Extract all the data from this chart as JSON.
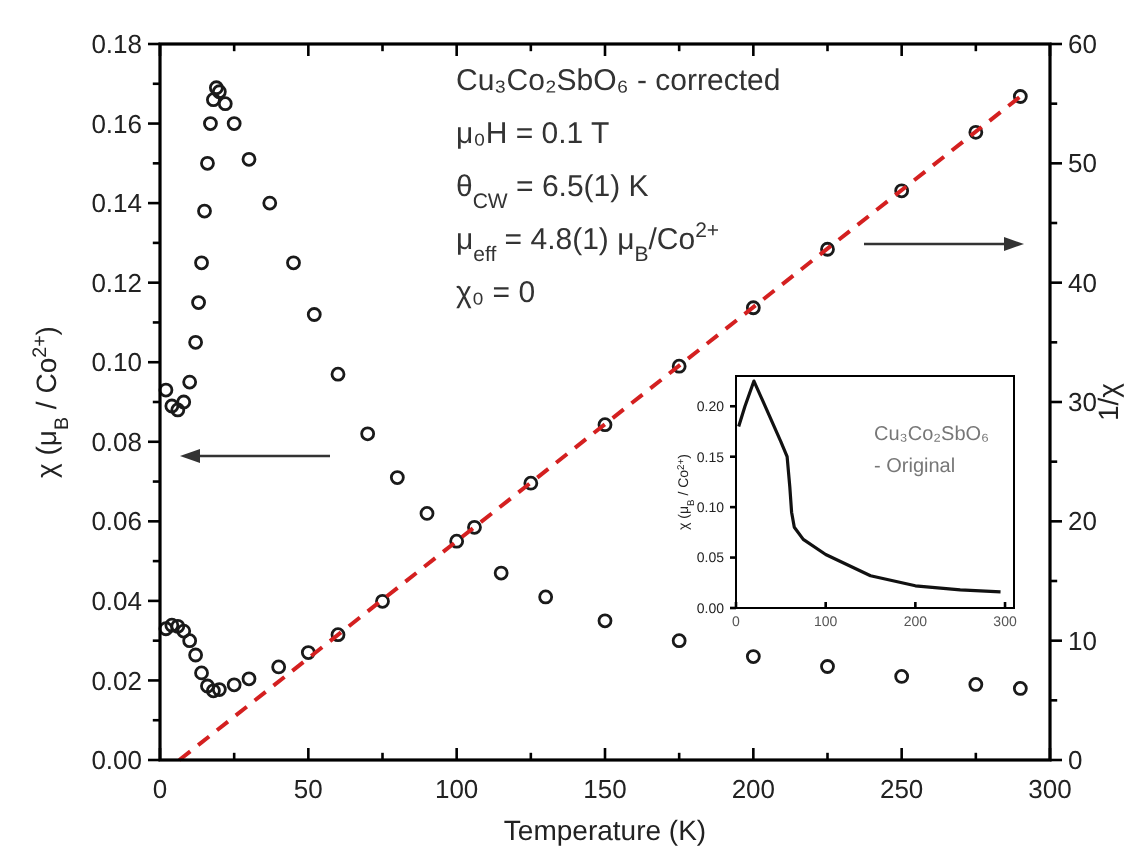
{
  "chart_data": [
    {
      "type": "scatter",
      "xlabel": "Temperature (K)",
      "ylabel": "χ (μ$_{B}$ / Co$^{2+}$)",
      "y2label": "1/χ",
      "marker": "circle",
      "xlim": [
        0,
        300
      ],
      "xticks": [
        0,
        {
          "value": 25,
          "label": null
        },
        50,
        {
          "value": 75,
          "label": null
        },
        100,
        {
          "value": 125,
          "label": null
        },
        150,
        {
          "value": 175,
          "label": null
        },
        200,
        {
          "value": 225,
          "label": null
        },
        250,
        {
          "value": 275,
          "label": null
        },
        300
      ],
      "ylim": [
        0,
        0.18
      ],
      "yticks": [
        {
          "value": 0,
          "label": "0.00"
        },
        {
          "value": 0.01,
          "label": null
        },
        {
          "value": 0.02,
          "label": "0.02"
        },
        {
          "value": 0.03,
          "label": null
        },
        {
          "value": 0.04,
          "label": "0.04"
        },
        {
          "value": 0.05,
          "label": null
        },
        {
          "value": 0.06,
          "label": "0.06"
        },
        {
          "value": 0.07,
          "label": null
        },
        {
          "value": 0.08,
          "label": "0.08"
        },
        {
          "value": 0.09,
          "label": null
        },
        {
          "value": 0.1,
          "label": "0.10"
        },
        {
          "value": 0.11,
          "label": null
        },
        {
          "value": 0.12,
          "label": "0.12"
        },
        {
          "value": 0.13,
          "label": null
        },
        {
          "value": 0.14,
          "label": "0.14"
        },
        {
          "value": 0.15,
          "label": null
        },
        {
          "value": 0.16,
          "label": "0.16"
        },
        {
          "value": 0.17,
          "label": null
        },
        {
          "value": 0.18,
          "label": "0.18"
        }
      ],
      "y2lim": [
        0,
        60
      ],
      "y2ticks": [
        0,
        {
          "value": 5,
          "label": null
        },
        10,
        {
          "value": 15,
          "label": null
        },
        20,
        {
          "value": 25,
          "label": null
        },
        30,
        {
          "value": 35,
          "label": null
        },
        40,
        {
          "value": 45,
          "label": null
        },
        50,
        {
          "value": 55,
          "label": null
        },
        60
      ],
      "annotations": [
        "Cu₃Co₂SbO₆ - corrected",
        "μ₀H = 0.1 T",
        "θ$_{CW}$ = 6.5(1) K",
        "μ$_{eff}$ = 4.8(1) μ$_{B}$/Co$^{2+}$",
        "χ₀   = 0"
      ],
      "series": [
        {
          "color": "#1a1a1a",
          "x": [
            2,
            4,
            6,
            8,
            10,
            12,
            13,
            14,
            15,
            16,
            17,
            18,
            19,
            20,
            22,
            25,
            30,
            37,
            45,
            52,
            60,
            70,
            80,
            90,
            100,
            115,
            130,
            150,
            175,
            200,
            225,
            250,
            275,
            290
          ],
          "values": [
            0.093,
            0.089,
            0.088,
            0.09,
            0.095,
            0.105,
            0.115,
            0.125,
            0.138,
            0.15,
            0.16,
            0.166,
            0.169,
            0.168,
            0.165,
            0.16,
            0.151,
            0.14,
            0.125,
            0.112,
            0.097,
            0.082,
            0.071,
            0.062,
            0.055,
            0.047,
            0.041,
            0.035,
            0.03,
            0.026,
            0.0235,
            0.021,
            0.019,
            0.018
          ]
        },
        {
          "color": "#1a1a1a",
          "axis": "y2",
          "x": [
            2,
            4,
            6,
            8,
            10,
            12,
            14,
            16,
            18,
            20,
            25,
            30,
            40,
            50,
            60,
            75,
            106,
            125,
            150,
            175,
            200,
            225,
            250,
            275,
            290
          ],
          "values": [
            11.0,
            11.3,
            11.2,
            10.8,
            10.0,
            8.8,
            7.3,
            6.2,
            5.8,
            5.9,
            6.3,
            6.8,
            7.8,
            9.0,
            10.5,
            13.3,
            19.5,
            23.2,
            28.1,
            33.0,
            37.9,
            42.8,
            47.7,
            52.6,
            55.6
          ]
        },
        {
          "type": "line",
          "color": "#d42020",
          "axis": "y2",
          "marker": "none",
          "line_style": "dashed",
          "x": [
            6.5,
            290
          ],
          "values": [
            0,
            55.6
          ]
        }
      ]
    },
    {
      "type": "line",
      "ylabel": "χ (μ$_{B}$ / Co$^{2+}$)",
      "marker": "none",
      "xlim": [
        0,
        310
      ],
      "xticks": [
        0,
        100,
        200,
        300
      ],
      "ylim": [
        0,
        0.23
      ],
      "yticks": [
        {
          "value": 0,
          "label": "0.00"
        },
        {
          "value": 0.05,
          "label": "0.05"
        },
        {
          "value": 0.1,
          "label": "0.10"
        },
        {
          "value": 0.15,
          "label": "0.15"
        },
        {
          "value": 0.2,
          "label": "0.20"
        }
      ],
      "annotations": [
        "Cu₃Co₂SbO₆",
        "- Original"
      ],
      "series": [
        {
          "color": "#111111",
          "x": [
            3,
            10,
            20,
            30,
            40,
            50,
            57,
            60,
            62,
            65,
            75,
            100,
            150,
            200,
            250,
            295
          ],
          "values": [
            0.18,
            0.2,
            0.225,
            0.205,
            0.185,
            0.165,
            0.15,
            0.12,
            0.095,
            0.08,
            0.068,
            0.053,
            0.032,
            0.022,
            0.018,
            0.016
          ]
        }
      ]
    }
  ]
}
